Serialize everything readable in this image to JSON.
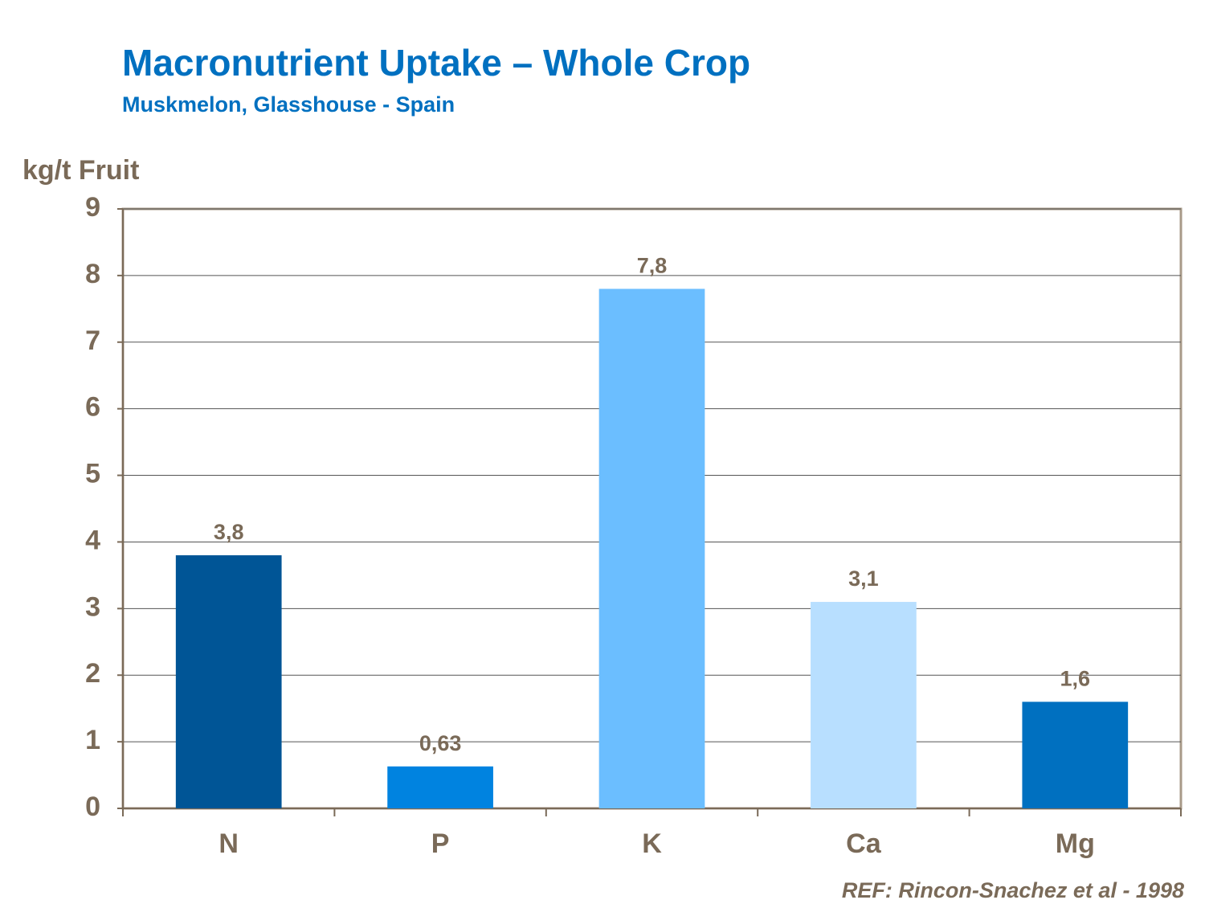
{
  "chart_data": {
    "type": "bar",
    "title": "Macronutrient Uptake – Whole Crop",
    "subtitle": "Muskmelon, Glasshouse  - Spain",
    "y_label": "kg/t Fruit",
    "reference": "REF: Rincon-Snachez  et al - 1998",
    "categories": [
      "N",
      "P",
      "K",
      "Ca",
      "Mg"
    ],
    "values": [
      3.8,
      0.63,
      7.8,
      3.1,
      1.6
    ],
    "value_labels": [
      "3,8",
      "0,63",
      "7,8",
      "3,1",
      "1,6"
    ],
    "colors": [
      "#005596",
      "#0083e0",
      "#6bbeff",
      "#b8dfff",
      "#0070c0"
    ],
    "ylim": [
      0,
      9
    ],
    "yticks": [
      0,
      1,
      2,
      3,
      4,
      5,
      6,
      7,
      8,
      9
    ],
    "grid": true
  }
}
